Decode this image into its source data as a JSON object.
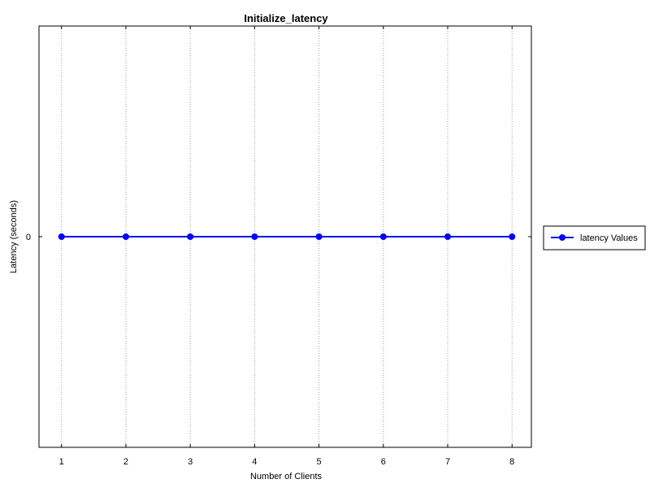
{
  "chart_data": {
    "type": "line",
    "title": "Initialize_latency",
    "xlabel": "Number of Clients",
    "ylabel": "Latency (seconds)",
    "x": [
      1,
      2,
      3,
      4,
      5,
      6,
      7,
      8
    ],
    "x_ticks": [
      "1",
      "2",
      "3",
      "4",
      "5",
      "6",
      "7",
      "8"
    ],
    "y_ticks": [
      "0"
    ],
    "xlim": [
      0.65,
      8.3
    ],
    "ylim": [
      -1,
      1
    ],
    "grid": "x-dotted",
    "legend_position": "right",
    "series": [
      {
        "name": "latency Values",
        "values": [
          0,
          0,
          0,
          0,
          0,
          0,
          0,
          0
        ],
        "color": "#0000ff",
        "marker": "circle"
      }
    ]
  }
}
